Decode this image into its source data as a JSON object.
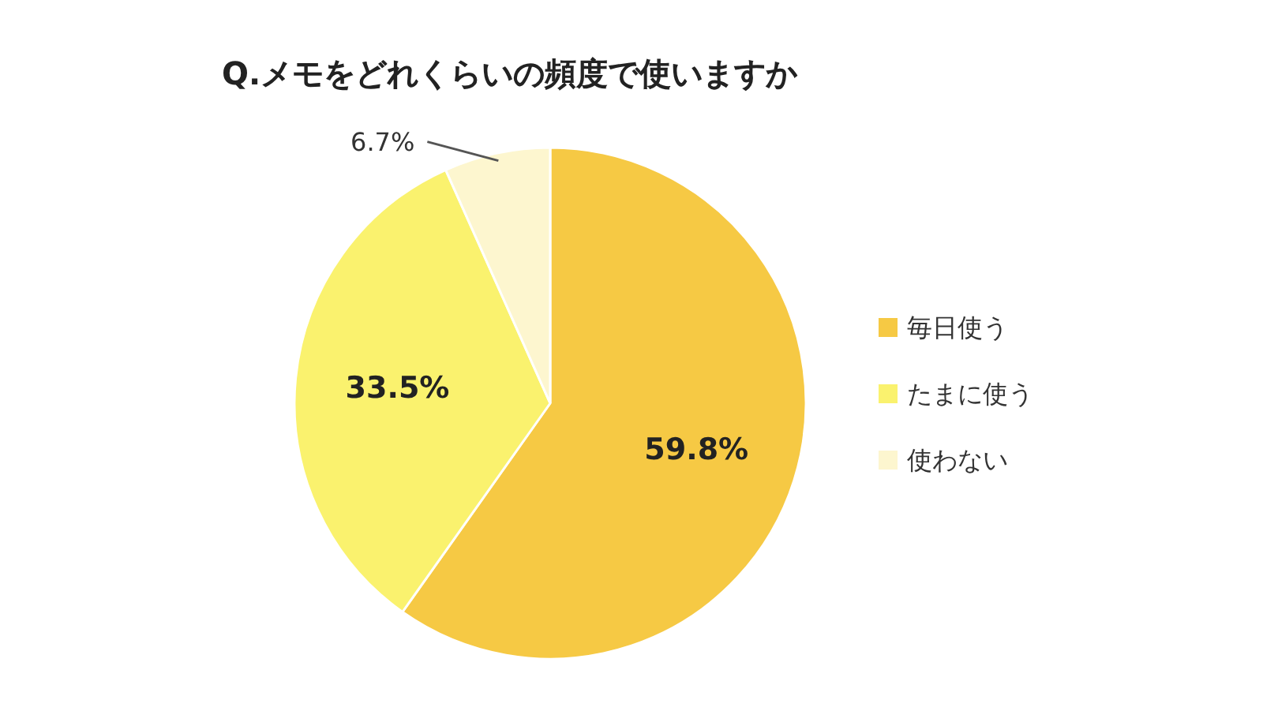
{
  "chart_data": {
    "type": "pie",
    "title": "Q.メモをどれくらいの頻度で使いますか",
    "categories": [
      "毎日使う",
      "たまに使う",
      "使わない"
    ],
    "values": [
      59.8,
      33.5,
      6.7
    ],
    "colors": [
      "#f6c944",
      "#faf26e",
      "#fdf6cf"
    ],
    "data_labels": true,
    "value_labels": [
      "59.8%",
      "33.5%",
      "6.7%"
    ],
    "legend": "right"
  }
}
